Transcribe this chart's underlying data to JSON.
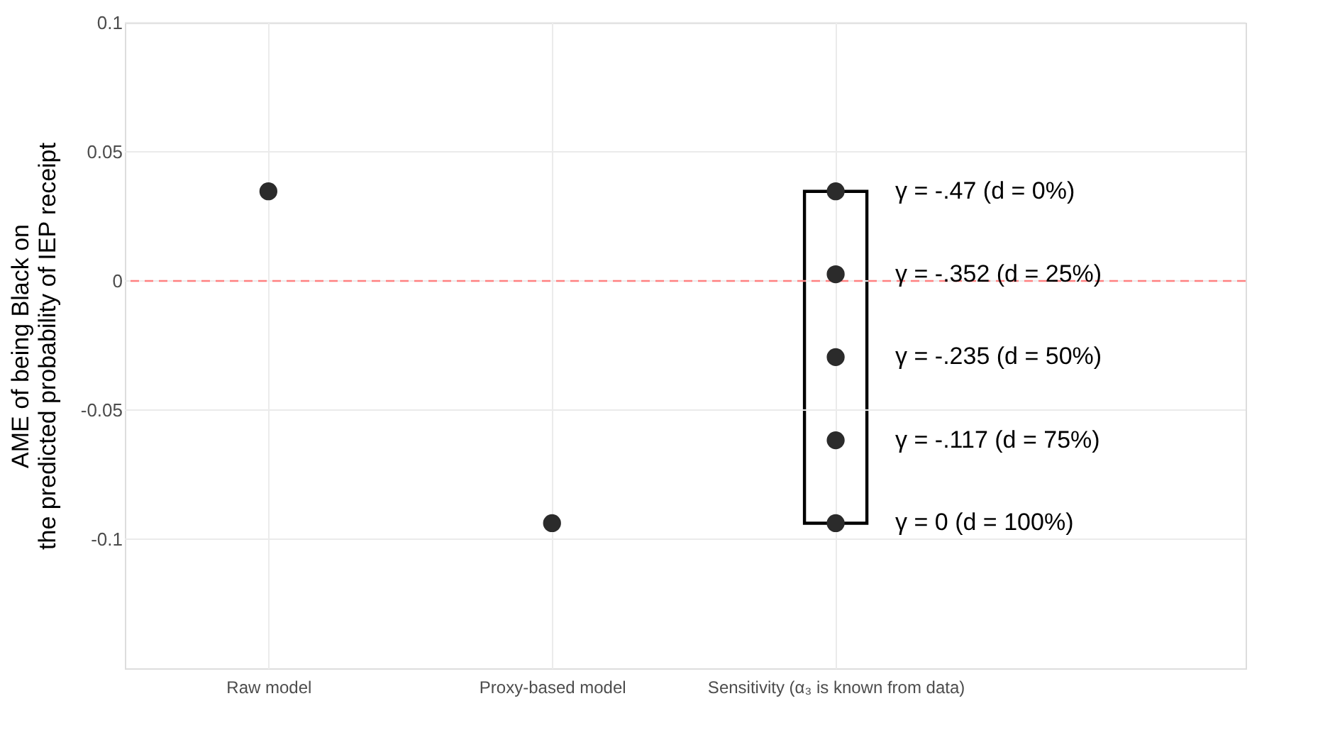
{
  "chart_data": {
    "type": "scatter",
    "ylabel": "AME of being Black on\nthe predicted probability of IEP receipt",
    "categories": [
      "Raw model",
      "Proxy-based model",
      "Sensitivity (α₃ is known from data)"
    ],
    "ylim": [
      -0.15,
      0.1
    ],
    "yticks": [
      -0.1,
      -0.05,
      0,
      0.05,
      0.1
    ],
    "grid": true,
    "series": [
      {
        "type": "bar",
        "color": "#000000",
        "values": [
          null,
          null,
          0.1285
        ],
        "base": [
          null,
          null,
          -0.0938
        ]
      },
      {
        "color": "#2b2b2b",
        "marker": "circle",
        "x": [
          "Raw model",
          "Proxy-based model",
          "Sensitivity (α₃ is known from data)",
          "Sensitivity (α₃ is known from data)",
          "Sensitivity (α₃ is known from data)",
          "Sensitivity (α₃ is known from data)",
          "Sensitivity (α₃ is known from data)"
        ],
        "values": [
          0.0347,
          -0.0938,
          0.0347,
          0.0026,
          -0.0295,
          -0.0617,
          -0.0938
        ]
      }
    ],
    "ref_lines": [
      {
        "axis": "y",
        "value": 0,
        "color": "#ff8080",
        "line_style": "dashed"
      }
    ],
    "annotations": [
      {
        "text": "γ = -.47 (d = 0%)",
        "x": "Sensitivity (α₃ is known from data)",
        "y": 0.0347
      },
      {
        "text": "γ = -.352 (d = 25%)",
        "x": "Sensitivity (α₃ is known from data)",
        "y": 0.0026
      },
      {
        "text": "γ = -.235 (d = 50%)",
        "x": "Sensitivity (α₃ is known from data)",
        "y": -0.0295
      },
      {
        "text": "γ = -.117 (d = 75%)",
        "x": "Sensitivity (α₃ is known from data)",
        "y": -0.0617
      },
      {
        "text": "γ = 0 (d = 100%)",
        "x": "Sensitivity (α₃ is known from data)",
        "y": -0.0938
      }
    ]
  }
}
